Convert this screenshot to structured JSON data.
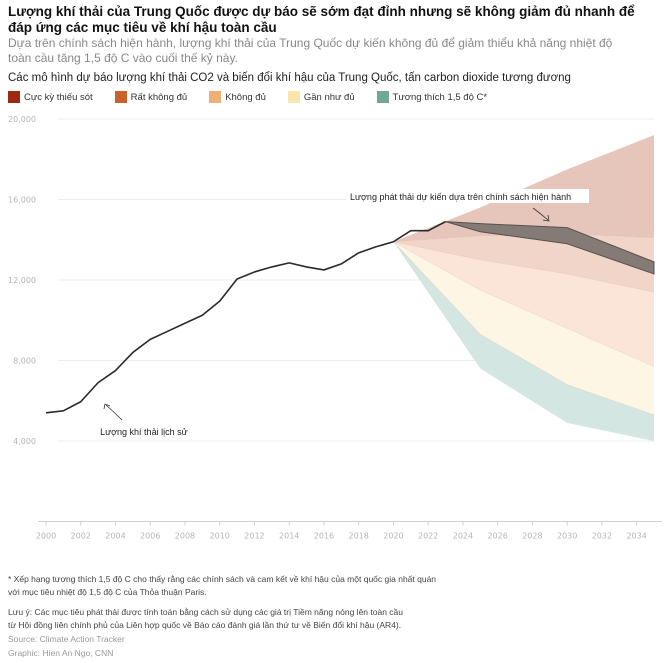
{
  "header": {
    "title": "Lượng khí thải của Trung Quốc được dự báo sẽ sớm đạt đỉnh nhưng sẽ không giảm đủ nhanh để đáp ứng các mục tiêu về khí hậu toàn cầu",
    "subtitle": "Dựa trên chính sách hiện hành, lượng khí thải của Trung Quốc dự kiến không đủ để giảm thiểu khả năng nhiệt độ toàn cầu tăng 1,5 độ C vào cuối thế kỷ này."
  },
  "chart_data": {
    "type": "area",
    "title": "Các mô hình dự báo lượng khí thải CO2 và biến đổi khí hậu của Trung Quốc, tấn carbon dioxide tương đương",
    "xlabel": "",
    "ylabel": "",
    "xlim": [
      2000,
      2035
    ],
    "ylim": [
      0,
      20000
    ],
    "x_ticks": [
      2000,
      2002,
      2004,
      2006,
      2008,
      2010,
      2012,
      2014,
      2016,
      2018,
      2020,
      2022,
      2024,
      2026,
      2028,
      2030,
      2032,
      2034
    ],
    "y_ticks": [
      4000,
      8000,
      12000,
      16000,
      20000
    ],
    "y_tick_labels": [
      "4,000",
      "8,000",
      "12,000",
      "16,000",
      "20,000"
    ],
    "grid": true,
    "legend_position": "top-left",
    "legend": [
      {
        "name": "Cực kỳ thiếu sót",
        "color": "#9c2a12"
      },
      {
        "name": "Rất không đủ",
        "color": "#cc6130"
      },
      {
        "name": "Không đủ",
        "color": "#efb077"
      },
      {
        "name": "Gần như đủ",
        "color": "#f9e6ae"
      },
      {
        "name": "Tương thích 1,5 độ C*",
        "color": "#6fa995"
      }
    ],
    "historical": {
      "name": "Lượng khí thải lịch sử",
      "x": [
        2000,
        2001,
        2002,
        2003,
        2004,
        2005,
        2006,
        2007,
        2008,
        2009,
        2010,
        2011,
        2012,
        2013,
        2014,
        2015,
        2016,
        2017,
        2018,
        2019,
        2020,
        2021,
        2022,
        2023
      ],
      "y": [
        5400,
        5500,
        5950,
        6900,
        7500,
        8400,
        9050,
        9450,
        9850,
        10250,
        10950,
        12050,
        12400,
        12650,
        12850,
        12650,
        12500,
        12800,
        13350,
        13650,
        13900,
        14450,
        14450,
        14900
      ]
    },
    "bands": {
      "x": [
        2020,
        2025,
        2030,
        2035
      ],
      "boundaries": [
        {
          "name": "Cực kỳ thiếu sót (upper)",
          "y": [
            13900,
            15600,
            17500,
            19200
          ]
        },
        {
          "name": "Cực kỳ thiếu sót / Rất không đủ",
          "y": [
            13900,
            14200,
            14300,
            14100
          ]
        },
        {
          "name": "Rất không đủ / Không đủ",
          "y": [
            13900,
            13000,
            12300,
            11400
          ]
        },
        {
          "name": "Không đủ / Gần như đủ",
          "y": [
            13900,
            11500,
            9600,
            7700
          ]
        },
        {
          "name": "Gần như đủ / Tương thích 1,5 độ C",
          "y": [
            13900,
            9300,
            6800,
            5300
          ]
        },
        {
          "name": "Tương thích 1,5 độ C (lower)",
          "y": [
            13900,
            7600,
            4900,
            4000
          ]
        }
      ],
      "fills": [
        "#e6c5ba",
        "#f1d5c9",
        "#fbe5d8",
        "#fdf6e5",
        "#d4e6e1"
      ]
    },
    "current_policy": {
      "name": "Lượng phát thải dự kiến dựa trên chính sách hiện hành",
      "x": [
        2023,
        2025,
        2030,
        2035
      ],
      "upper": [
        14900,
        14800,
        14600,
        12900
      ],
      "lower": [
        14900,
        14400,
        13800,
        12300
      ],
      "color": "#847a76"
    },
    "annotations": [
      {
        "text": "Lượng khí thải lịch sử",
        "x": 2003,
        "y": 4300
      },
      {
        "text": "Lượng phát thải dự kiến dựa trên chính sách hiện hành",
        "x": 2017.5,
        "y": 16000
      }
    ]
  },
  "footer": {
    "footnote_line1": "* Xếp hạng tương thích 1,5 độ C cho thấy rằng các chính sách và cam kết về khí hậu của một quốc gia nhất quán",
    "footnote_line2": "với mục tiêu nhiệt độ 1,5 độ C của Thỏa thuận Paris.",
    "note_line1": "Lưu ý: Các mục tiêu phát thải được tính toán bằng cách sử dụng các giá trị Tiềm năng nóng lên toàn cầu",
    "note_line2": "từ Hội đồng liên chính phủ của Liên hợp quốc về Báo cáo đánh giá lần thứ tư về Biến đổi khí hậu (AR4).",
    "source": "Source: Climate Action Tracker",
    "graphic": "Graphic: Hien An Ngo, CNN"
  }
}
